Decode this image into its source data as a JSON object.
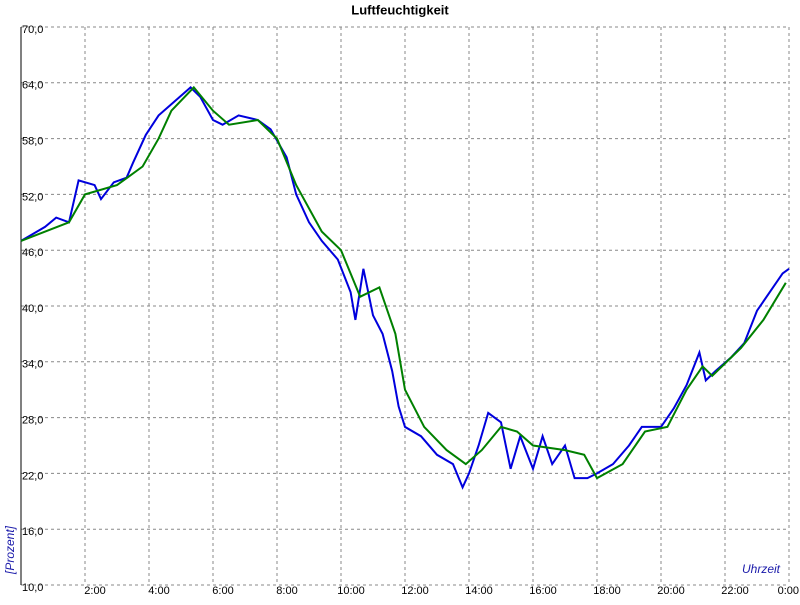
{
  "chart_data": {
    "type": "line",
    "title": "Luftfeuchtigkeit",
    "y_label": "[Prozent]",
    "x_label": "Uhrzeit",
    "xlim": [
      0,
      24
    ],
    "ylim": [
      10,
      70
    ],
    "grid": true,
    "xticks": [
      {
        "value": 2,
        "label": "2:00"
      },
      {
        "value": 4,
        "label": "4:00"
      },
      {
        "value": 6,
        "label": "6:00"
      },
      {
        "value": 8,
        "label": "8:00"
      },
      {
        "value": 10,
        "label": "10:00"
      },
      {
        "value": 12,
        "label": "12:00"
      },
      {
        "value": 14,
        "label": "14:00"
      },
      {
        "value": 16,
        "label": "16:00"
      },
      {
        "value": 18,
        "label": "18:00"
      },
      {
        "value": 20,
        "label": "20:00"
      },
      {
        "value": 22,
        "label": "22:00"
      },
      {
        "value": 24,
        "label": "0:00"
      }
    ],
    "yticks": [
      {
        "value": 10,
        "label": "10,0"
      },
      {
        "value": 16,
        "label": "16,0"
      },
      {
        "value": 22,
        "label": "22,0"
      },
      {
        "value": 28,
        "label": "28,0"
      },
      {
        "value": 34,
        "label": "34,0"
      },
      {
        "value": 40,
        "label": "40,0"
      },
      {
        "value": 46,
        "label": "46,0"
      },
      {
        "value": 52,
        "label": "52,0"
      },
      {
        "value": 58,
        "label": "58,0"
      },
      {
        "value": 64,
        "label": "64,0"
      },
      {
        "value": 70,
        "label": "70,0"
      }
    ],
    "series": [
      {
        "color": "#0000dd",
        "x": [
          0,
          0.25,
          0.75,
          1.1,
          1.5,
          1.8,
          2.3,
          2.5,
          2.9,
          3.3,
          3.5,
          3.9,
          4.3,
          4.8,
          5.3,
          5.6,
          6.0,
          6.3,
          6.8,
          7.4,
          7.8,
          8.3,
          8.6,
          9.0,
          9.4,
          9.9,
          10.3,
          10.45,
          10.7,
          11.0,
          11.3,
          11.6,
          11.8,
          12.0,
          12.5,
          13.0,
          13.5,
          13.8,
          14.0,
          14.3,
          14.6,
          15.0,
          15.3,
          15.6,
          16.0,
          16.3,
          16.6,
          17.0,
          17.3,
          17.7,
          18.0,
          18.5,
          19.0,
          19.4,
          20.0,
          20.4,
          20.8,
          21.2,
          21.4,
          21.7,
          22.2,
          22.6,
          23.0,
          23.4,
          23.8,
          24.0
        ],
        "values": [
          47,
          47.5,
          48.5,
          49.5,
          49,
          53.5,
          53,
          51.5,
          53.3,
          53.8,
          55.4,
          58.4,
          60.5,
          62,
          63.5,
          62.5,
          60,
          59.5,
          60.5,
          60,
          59,
          56,
          52,
          49,
          47,
          45,
          41.5,
          38.5,
          44,
          39,
          37,
          33,
          29.2,
          27,
          26,
          24,
          23,
          20.5,
          22,
          25,
          28.5,
          27.5,
          22.5,
          26,
          22.5,
          26,
          23,
          25,
          21.5,
          21.5,
          22,
          23,
          25,
          27,
          27,
          29,
          31.5,
          35,
          32,
          33,
          34.5,
          36,
          39.5,
          41.5,
          43.5,
          44
        ]
      },
      {
        "color": "#008000",
        "x": [
          0,
          1.5,
          2.0,
          3.0,
          3.8,
          4.3,
          4.7,
          5.4,
          6.0,
          6.5,
          7.4,
          8.0,
          8.6,
          9.4,
          10.0,
          10.6,
          11.2,
          11.7,
          12.0,
          12.6,
          13.3,
          13.9,
          14.4,
          15.0,
          15.5,
          16.0,
          17.0,
          17.6,
          18.0,
          18.8,
          19.5,
          20.2,
          20.8,
          21.3,
          21.6,
          22.5,
          23.2,
          23.9
        ],
        "values": [
          47,
          49,
          52,
          53,
          55,
          58,
          61,
          63.5,
          61,
          59.5,
          60,
          58,
          53,
          48,
          46,
          41,
          42,
          37,
          31,
          27,
          24.5,
          23,
          24.5,
          27,
          26.5,
          25,
          24.5,
          24,
          21.5,
          23,
          26.5,
          27,
          31,
          33.5,
          32.5,
          35.5,
          38.5,
          42.5
        ]
      }
    ]
  }
}
